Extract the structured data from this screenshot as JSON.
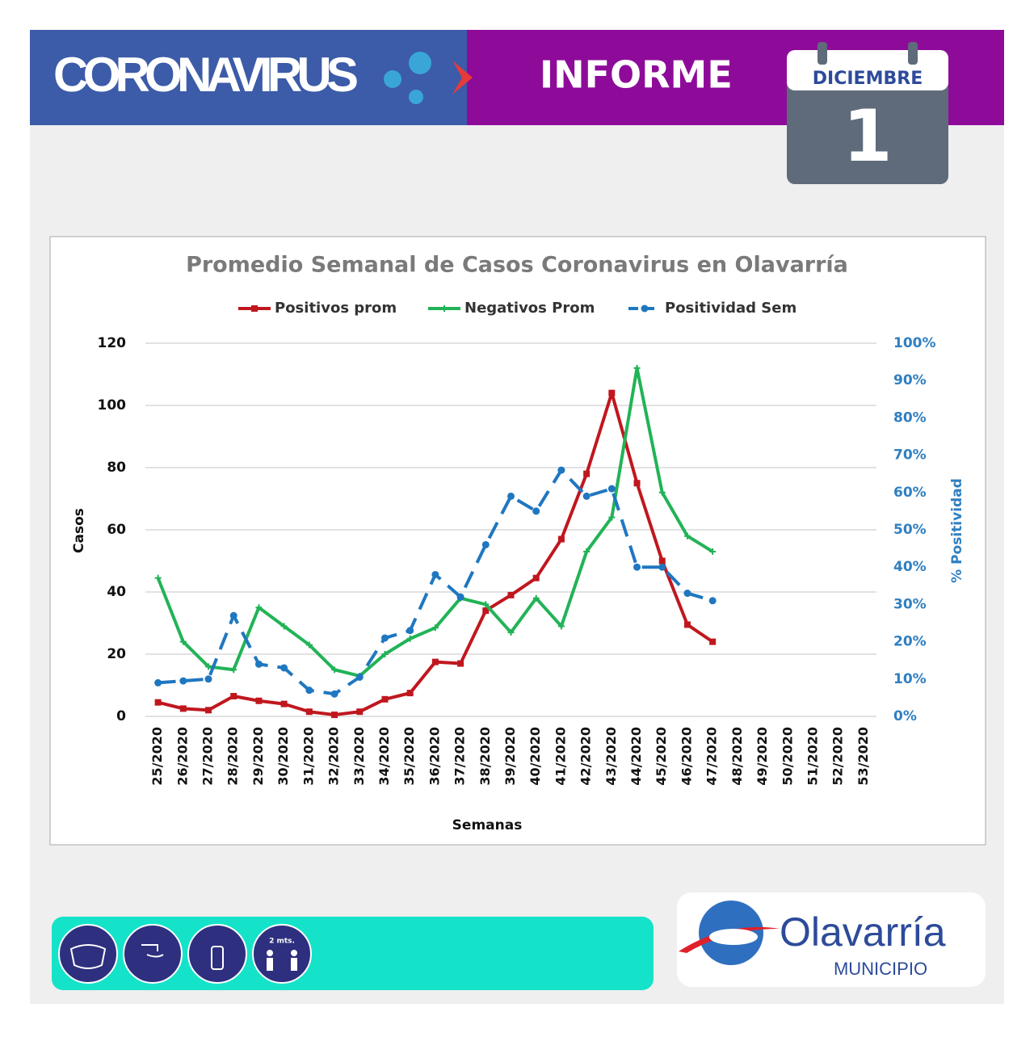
{
  "header": {
    "title": "CORONAVIRUS",
    "subtitle": "INFORME",
    "month": "DICIEMBRE",
    "day": "1"
  },
  "chart_data": {
    "type": "line",
    "title": "Promedio Semanal de Casos Coronavirus en Olavarría",
    "x_label": "Semanas",
    "y_label": "Casos",
    "y2_label": "% Positividad",
    "categories": [
      "25/2020",
      "26/2020",
      "27/2020",
      "28/2020",
      "29/2020",
      "30/2020",
      "31/2020",
      "32/2020",
      "33/2020",
      "34/2020",
      "35/2020",
      "36/2020",
      "37/2020",
      "38/2020",
      "39/2020",
      "40/2020",
      "41/2020",
      "42/2020",
      "43/2020",
      "44/2020",
      "45/2020",
      "46/2020",
      "47/2020",
      "48/2020",
      "49/2020",
      "50/2020",
      "51/2020",
      "52/2020",
      "53/2020"
    ],
    "series": [
      {
        "name": "Positivos prom",
        "color": "#c0171e",
        "marker": "square",
        "values": [
          4.5,
          2.5,
          2,
          6.5,
          5,
          4,
          1.5,
          0.5,
          1.5,
          5.5,
          7.5,
          17.5,
          17,
          34,
          39,
          44.5,
          57,
          78,
          104,
          75,
          50,
          29.5,
          24,
          null,
          null,
          null,
          null,
          null,
          null
        ]
      },
      {
        "name": "Negativos Prom",
        "color": "#22b357",
        "marker": "plus",
        "values": [
          44.5,
          24,
          16,
          15,
          35,
          29,
          23,
          15,
          13,
          20,
          25,
          28.5,
          38,
          36,
          27,
          38,
          29,
          53,
          64,
          112,
          72,
          58,
          53,
          null,
          null,
          null,
          null,
          null,
          null
        ]
      },
      {
        "name": "Positividad Sem",
        "color": "#1f77c0",
        "marker": "circle",
        "dashed": true,
        "axis": "y2",
        "values": [
          9,
          9.5,
          10,
          27,
          14,
          13,
          7,
          6,
          10.5,
          21,
          23,
          38,
          32,
          46,
          59,
          55,
          66,
          59,
          61,
          40,
          40,
          33,
          31,
          null,
          null,
          null,
          null,
          null,
          null
        ]
      }
    ],
    "ylim": [
      0,
      120
    ],
    "yticks": [
      0,
      20,
      40,
      60,
      80,
      100,
      120
    ],
    "y2lim": [
      0,
      100
    ],
    "y2ticks": [
      {
        "value": 0,
        "label": "0%"
      },
      {
        "value": 10,
        "label": "10%"
      },
      {
        "value": 20,
        "label": "20%"
      },
      {
        "value": 30,
        "label": "30%"
      },
      {
        "value": 40,
        "label": "40%"
      },
      {
        "value": 50,
        "label": "50%"
      },
      {
        "value": 60,
        "label": "60%"
      },
      {
        "value": 70,
        "label": "70%"
      },
      {
        "value": 80,
        "label": "80%"
      },
      {
        "value": 90,
        "label": "90%"
      },
      {
        "value": 100,
        "label": "100%"
      }
    ],
    "grid": true,
    "legend": "top"
  },
  "footer": {
    "distance_label": "2 mts.",
    "logo_name": "Olavarría",
    "logo_sub": "MUNICIPIO"
  }
}
